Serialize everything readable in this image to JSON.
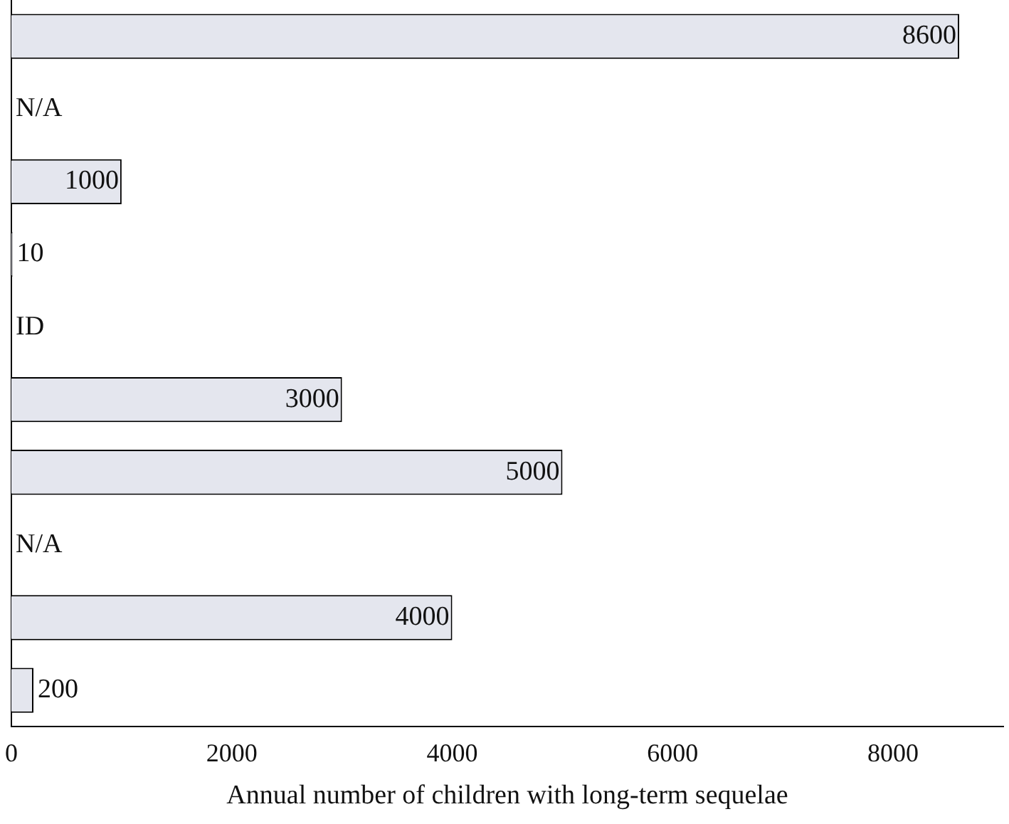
{
  "chart_data": {
    "type": "bar",
    "orientation": "horizontal",
    "xlabel": "Annual number of children with long-term sequelae",
    "categories": [
      null,
      null,
      null,
      null,
      null,
      null,
      null,
      null,
      null,
      null
    ],
    "values": [
      8600,
      null,
      1000,
      10,
      null,
      3000,
      5000,
      null,
      4000,
      200
    ],
    "value_labels": [
      "8600",
      "N/A",
      "1000",
      "10",
      "ID",
      "3000",
      "5000",
      "N/A",
      "4000",
      "200"
    ],
    "color": "#e4e6ee",
    "xlim": [
      0,
      9000
    ],
    "xticks": [
      0,
      2000,
      4000,
      6000,
      8000
    ],
    "grid": false,
    "legend": false
  }
}
